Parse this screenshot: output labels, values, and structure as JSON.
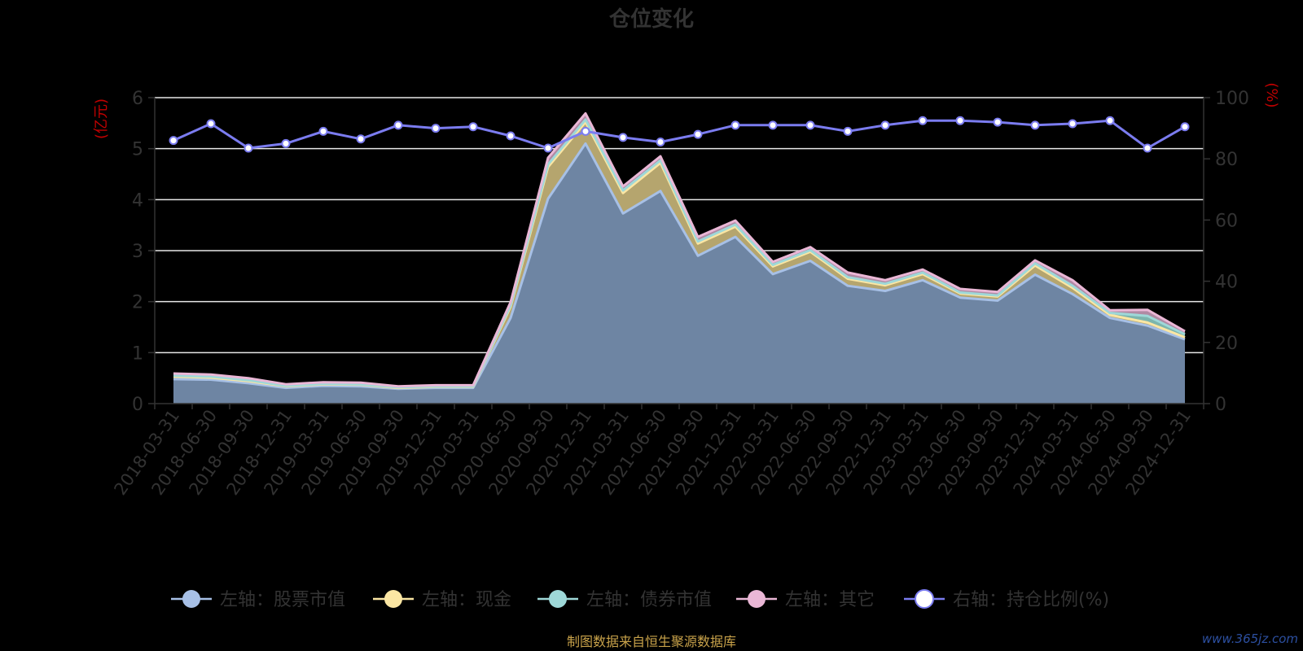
{
  "chart_data": {
    "type": "area",
    "title": "仓位变化",
    "y_left_unit": "(亿元)",
    "y_right_unit": "(%)",
    "ylim_left": [
      0,
      6
    ],
    "ylim_right": [
      0,
      100
    ],
    "yticks_left": [
      "0",
      "1",
      "2",
      "3",
      "4",
      "5",
      "6"
    ],
    "yticks_right": [
      "0",
      "20",
      "40",
      "60",
      "80",
      "100"
    ],
    "categories": [
      "2018-03-31",
      "2018-06-30",
      "2018-09-30",
      "2018-12-31",
      "2019-03-31",
      "2019-06-30",
      "2019-09-30",
      "2019-12-31",
      "2020-03-31",
      "2020-06-30",
      "2020-09-30",
      "2020-12-31",
      "2021-03-31",
      "2021-06-30",
      "2021-09-30",
      "2021-12-31",
      "2022-03-31",
      "2022-06-30",
      "2022-09-30",
      "2022-12-31",
      "2023-03-31",
      "2023-06-30",
      "2023-09-30",
      "2023-12-31",
      "2024-03-31",
      "2024-06-30",
      "2024-09-30",
      "2024-12-31"
    ],
    "x_tick_labels": [
      "2018-03-31",
      "2018-06-30",
      "2018-09-30",
      "2018-12-31",
      "2019-03-31",
      "2019-06-30",
      "2019-09-30",
      "2019-12-31",
      "2020-03-31",
      "2020-06-30",
      "2020-09-30",
      "2020-12-31",
      "2021-03-31",
      "2021-06-30",
      "2021-09-30",
      "2021-12-31",
      "2022-03-31",
      "2022-06-30",
      "2022-09-30",
      "2022-12-31",
      "2023-03-31",
      "2023-06-30",
      "2023-09-30",
      "2023-12-31",
      "2024-03-31",
      "2024-06-30",
      "2024-09-30",
      "2024-12-31"
    ],
    "stacked": true,
    "series": [
      {
        "name": "左轴：股票市值",
        "axis": "left",
        "color": "#a7c0e6",
        "fill": "#6e85a3",
        "values": [
          0.48,
          0.47,
          0.4,
          0.31,
          0.35,
          0.34,
          0.29,
          0.31,
          0.31,
          1.68,
          4.02,
          5.1,
          3.73,
          4.17,
          2.9,
          3.27,
          2.54,
          2.8,
          2.31,
          2.21,
          2.42,
          2.08,
          2.02,
          2.53,
          2.15,
          1.68,
          1.53,
          1.26
        ]
      },
      {
        "name": "左轴：现金",
        "axis": "left",
        "color": "#fbe6a3",
        "fill": "#b5a56e",
        "values": [
          0.05,
          0.04,
          0.04,
          0.03,
          0.03,
          0.03,
          0.02,
          0.02,
          0.02,
          0.22,
          0.62,
          0.42,
          0.4,
          0.55,
          0.24,
          0.2,
          0.15,
          0.18,
          0.14,
          0.11,
          0.12,
          0.08,
          0.08,
          0.18,
          0.12,
          0.06,
          0.06,
          0.04
        ]
      },
      {
        "name": "左轴：债券市值",
        "axis": "left",
        "color": "#9ed8d8",
        "fill": "#7cb5ad",
        "values": [
          0.02,
          0.02,
          0.02,
          0.01,
          0.01,
          0.01,
          0.01,
          0.01,
          0.01,
          0.03,
          0.05,
          0.05,
          0.05,
          0.05,
          0.04,
          0.04,
          0.03,
          0.03,
          0.03,
          0.03,
          0.03,
          0.02,
          0.02,
          0.04,
          0.04,
          0.04,
          0.13,
          0.06
        ]
      },
      {
        "name": "左轴：其它",
        "axis": "left",
        "color": "#eab7d6",
        "fill": "#b08aa4",
        "values": [
          0.04,
          0.04,
          0.04,
          0.03,
          0.03,
          0.03,
          0.02,
          0.02,
          0.02,
          0.06,
          0.13,
          0.12,
          0.08,
          0.08,
          0.09,
          0.08,
          0.06,
          0.06,
          0.09,
          0.07,
          0.06,
          0.07,
          0.07,
          0.06,
          0.11,
          0.05,
          0.12,
          0.06
        ]
      },
      {
        "name": "右轴：持仓比例(%)",
        "axis": "right",
        "color": "#7b7cf0",
        "values": [
          86,
          91.5,
          83.5,
          85,
          89,
          86.5,
          91,
          90,
          90.5,
          87.5,
          83.5,
          89,
          87,
          85.5,
          88,
          91,
          91,
          91,
          89,
          91,
          92.5,
          92.5,
          92,
          91,
          91.5,
          92.5,
          83.5,
          90.5
        ]
      }
    ],
    "legend_position": "bottom",
    "grid": true
  },
  "source": "制图数据来自恒生聚源数据库",
  "watermark": "www.365jz.com"
}
